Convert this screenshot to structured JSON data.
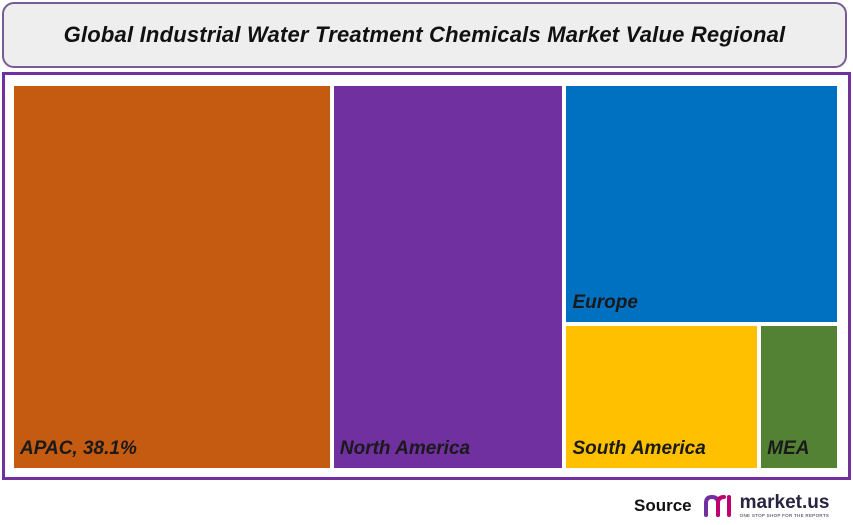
{
  "title": "Global Industrial Water Treatment Chemicals Market Value Regional",
  "chart_data": {
    "type": "treemap",
    "title": "Global Industrial Water Treatment Chemicals Market Value Regional",
    "items": [
      {
        "label": "APAC, 38.1%",
        "value": 38.1,
        "color": "#c55a11"
      },
      {
        "label": "North America",
        "value": 27.7,
        "color": "#7030a0"
      },
      {
        "label": "Europe",
        "value": 20.3,
        "color": "#0070c0"
      },
      {
        "label": "South America",
        "value": 8.8,
        "color": "#ffc000"
      },
      {
        "label": "MEA",
        "value": 3.6,
        "color": "#548235"
      }
    ]
  },
  "source": {
    "label": "Source",
    "brand_name": "market.us",
    "brand_tagline": "ONE STOP SHOP FOR THE REPORTS",
    "logo_icon": "market-us-logo-icon"
  }
}
